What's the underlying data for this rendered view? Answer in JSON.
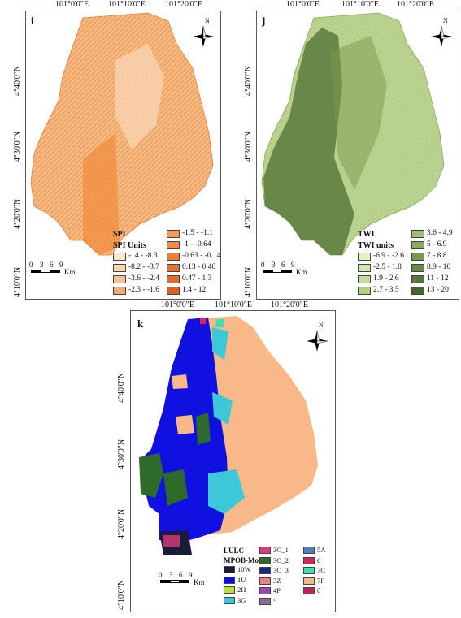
{
  "panels": [
    {
      "id": "i",
      "label": "i",
      "ticks_x": [
        "101°0'0\"E",
        "101°10'0\"E",
        "101°20'0\"E"
      ],
      "ticks_y": [
        "4°40'0\"N",
        "4°30'0\"N",
        "4°20'0\"N",
        "4°10'0\"N"
      ],
      "legend_title": "SPI",
      "legend_subtitle": "SPI Units",
      "legend_items": [
        {
          "label": "-14 - -8.3",
          "color": "#fbe6cf"
        },
        {
          "label": "-8.2 - -3.7",
          "color": "#f8d4b0"
        },
        {
          "label": "-3.6 - -2.4",
          "color": "#f5c093"
        },
        {
          "label": "-2.3 - -1.6",
          "color": "#f3ae77"
        },
        {
          "label": "-1.5 - -1.1",
          "color": "#f09c5e"
        },
        {
          "label": "-1 - -0.64",
          "color": "#ed8c49"
        },
        {
          "label": "-0.63 - -0.14",
          "color": "#eb7f3a"
        },
        {
          "label": "0.13 - 0.46",
          "color": "#e8732f"
        },
        {
          "label": "0.47 - 1.3",
          "color": "#e36a29"
        },
        {
          "label": "1.4 - 12",
          "color": "#de5f22"
        }
      ],
      "north": "N",
      "scale_labels": [
        "0",
        "3",
        "6",
        "9"
      ],
      "scale_unit": "Km"
    },
    {
      "id": "j",
      "label": "j",
      "ticks_x": [
        "101°0'0\"E",
        "101°10'0\"E",
        "101°20'0\"E"
      ],
      "ticks_y": [
        "4°40'0\"N",
        "4°30'0\"N",
        "4°20'0\"N",
        "4°10'0\"N"
      ],
      "legend_title": "TWI",
      "legend_subtitle": "TWI units",
      "legend_items": [
        {
          "label": "-6.9 - -2.6",
          "color": "#e3f0c8"
        },
        {
          "label": "-2.5 - 1.8",
          "color": "#d3e6ae"
        },
        {
          "label": "1.9 - 2.6",
          "color": "#c3db98"
        },
        {
          "label": "2.7 - 3.5",
          "color": "#b2cf85"
        },
        {
          "label": "3.6 - 4.9",
          "color": "#9ebd6f"
        },
        {
          "label": "5 - 6.9",
          "color": "#8aab5e"
        },
        {
          "label": "7 - 8.8",
          "color": "#77994f"
        },
        {
          "label": "8.9 - 10",
          "color": "#668745"
        },
        {
          "label": "11 - 12",
          "color": "#56753b"
        },
        {
          "label": "13 - 20",
          "color": "#486431"
        }
      ],
      "north": "N",
      "scale_labels": [
        "0",
        "3",
        "6",
        "9"
      ],
      "scale_unit": "Km"
    },
    {
      "id": "k",
      "label": "k",
      "ticks_x": [
        "101°0'0\"E",
        "101°10'0\"E",
        "101°20'0\"E"
      ],
      "ticks_y": [
        "4°40'0\"N",
        "4°30'0\"N",
        "4°20'0\"N",
        "4°10'0\"N"
      ],
      "legend_title": "LULC",
      "legend_subtitle": "MPOB-Mode",
      "legend_items": [
        {
          "label": "10W",
          "color": "#1a1a3a"
        },
        {
          "label": "1U",
          "color": "#1010e0"
        },
        {
          "label": "2H",
          "color": "#b8e03c"
        },
        {
          "label": "3G",
          "color": "#3cc8d8"
        },
        {
          "label": "3O_1",
          "color": "#e03a7a"
        },
        {
          "label": "3O_2",
          "color": "#2e6b2a"
        },
        {
          "label": "3O_3",
          "color": "#1a2a7a"
        },
        {
          "label": "3Z",
          "color": "#f08080"
        },
        {
          "label": "4P",
          "color": "#9a4ab0"
        },
        {
          "label": "5",
          "color": "#8a6a9a"
        },
        {
          "label": "5A",
          "color": "#4a80b8"
        },
        {
          "label": "6",
          "color": "#e02050"
        },
        {
          "label": "7C",
          "color": "#40e0b0"
        },
        {
          "label": "7F",
          "color": "#f8b888"
        },
        {
          "label": "8",
          "color": "#c02060"
        }
      ],
      "north": "N",
      "scale_labels": [
        "0",
        "3",
        "6",
        "9"
      ],
      "scale_unit": "Km"
    }
  ]
}
